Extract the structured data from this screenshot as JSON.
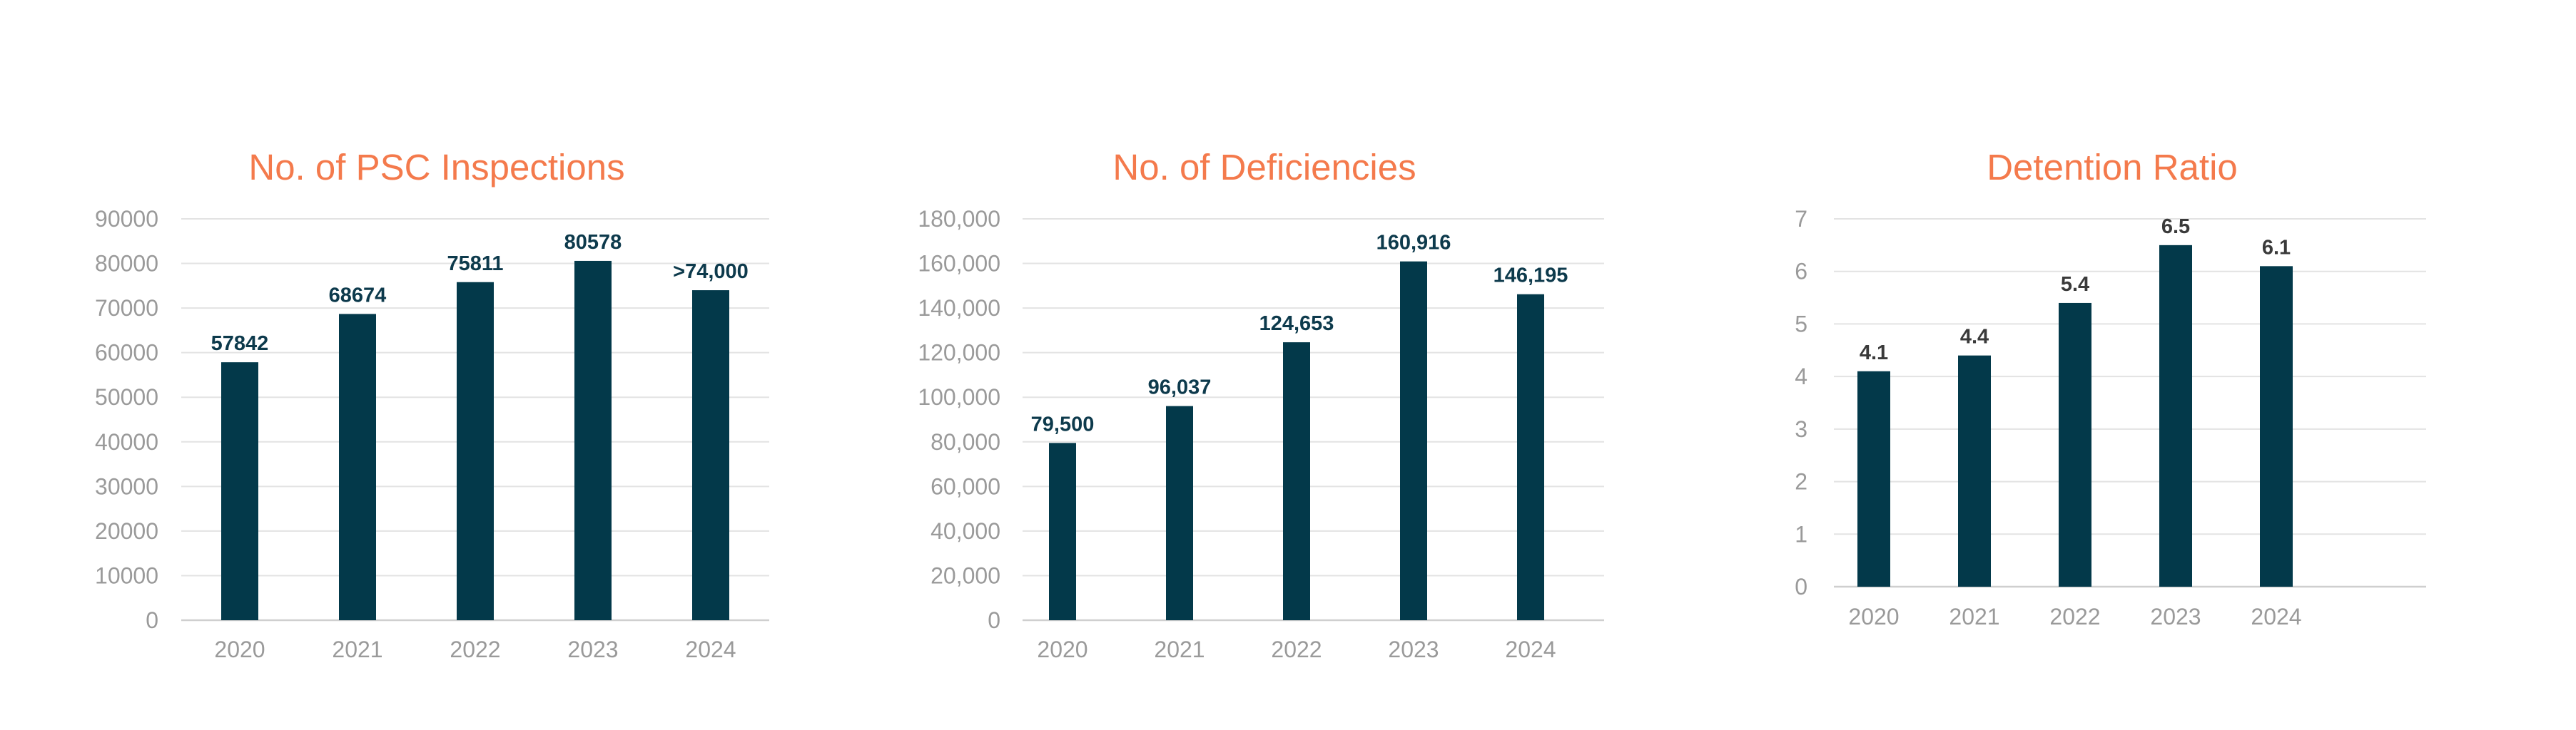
{
  "colors": {
    "title": "#F47A4C",
    "bar": "#03394A",
    "data_label_dark": "#0D3A4C",
    "data_label_gray": "#3A3A3A"
  },
  "chart_data": [
    {
      "type": "bar",
      "title": "No. of PSC Inspections",
      "categories": [
        "2020",
        "2021",
        "2022",
        "2023",
        "2024"
      ],
      "values": [
        57842,
        68674,
        75811,
        80578,
        74000
      ],
      "data_labels": [
        "57842",
        "68674",
        "75811",
        "80578",
        ">74,000"
      ],
      "yticks": [
        "0",
        "10000",
        "20000",
        "30000",
        "40000",
        "50000",
        "60000",
        "70000",
        "80000",
        "90000"
      ],
      "ylim": [
        0,
        90000
      ],
      "grid": true,
      "legend": "none"
    },
    {
      "type": "bar",
      "title": "No. of Deficiencies",
      "categories": [
        "2020",
        "2021",
        "2022",
        "2023",
        "2024"
      ],
      "values": [
        79500,
        96037,
        124653,
        160916,
        146195
      ],
      "data_labels": [
        "79,500",
        "96,037",
        "124,653",
        "160,916",
        "146,195"
      ],
      "yticks": [
        "0",
        "20,000",
        "40,000",
        "60,000",
        "80,000",
        "100,000",
        "120,000",
        "140,000",
        "160,000",
        "180,000"
      ],
      "ylim": [
        0,
        180000
      ],
      "grid": true,
      "legend": "none"
    },
    {
      "type": "bar",
      "title": "Detention Ratio",
      "categories": [
        "2020",
        "2021",
        "2022",
        "2023",
        "2024"
      ],
      "values": [
        4.1,
        4.4,
        5.4,
        6.5,
        6.1
      ],
      "data_labels": [
        "4.1",
        "4.4",
        "5.4",
        "6.5",
        "6.1"
      ],
      "yticks": [
        "0",
        "1",
        "2",
        "3",
        "4",
        "5",
        "6",
        "7"
      ],
      "ylim": [
        0,
        7
      ],
      "grid": true,
      "legend": "none"
    }
  ]
}
